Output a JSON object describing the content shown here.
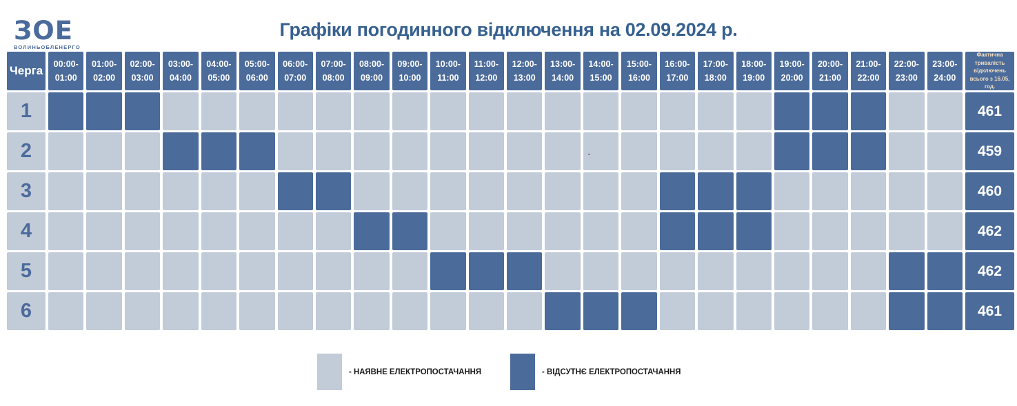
{
  "logo": {
    "text": "ЗОЕ",
    "subtext": "ВОЛИНЬОБЛЕНЕРГО"
  },
  "title": "Графіки погодинного відключення на 02.09.2024 р.",
  "chart_data": {
    "type": "heatmap",
    "title": "Графіки погодинного відключення на 02.09.2024 р.",
    "row_header": "Черга",
    "total_header": "Фактична тривалість відключень всього з 16.05, год.",
    "time_slots": [
      [
        "00:00-",
        "01:00"
      ],
      [
        "01:00-",
        "02:00"
      ],
      [
        "02:00-",
        "03:00"
      ],
      [
        "03:00-",
        "04:00"
      ],
      [
        "04:00-",
        "05:00"
      ],
      [
        "05:00-",
        "06:00"
      ],
      [
        "06:00-",
        "07:00"
      ],
      [
        "07:00-",
        "08:00"
      ],
      [
        "08:00-",
        "09:00"
      ],
      [
        "09:00-",
        "10:00"
      ],
      [
        "10:00-",
        "11:00"
      ],
      [
        "11:00-",
        "12:00"
      ],
      [
        "12:00-",
        "13:00"
      ],
      [
        "13:00-",
        "14:00"
      ],
      [
        "14:00-",
        "15:00"
      ],
      [
        "15:00-",
        "16:00"
      ],
      [
        "16:00-",
        "17:00"
      ],
      [
        "17:00-",
        "18:00"
      ],
      [
        "18:00-",
        "19:00"
      ],
      [
        "19:00-",
        "20:00"
      ],
      [
        "20:00-",
        "21:00"
      ],
      [
        "21:00-",
        "22:00"
      ],
      [
        "22:00-",
        "23:00"
      ],
      [
        "23:00-",
        "24:00"
      ]
    ],
    "queues": [
      {
        "label": "1",
        "off_hours": [
          0,
          1,
          2,
          19,
          20,
          21
        ],
        "total": "461"
      },
      {
        "label": "2",
        "off_hours": [
          3,
          4,
          5,
          19,
          20,
          21
        ],
        "total": "459"
      },
      {
        "label": "3",
        "off_hours": [
          6,
          7,
          16,
          17,
          18
        ],
        "total": "460"
      },
      {
        "label": "4",
        "off_hours": [
          8,
          9,
          16,
          17,
          18
        ],
        "total": "462"
      },
      {
        "label": "5",
        "off_hours": [
          10,
          11,
          12,
          22,
          23
        ],
        "total": "462"
      },
      {
        "label": "6",
        "off_hours": [
          13,
          14,
          15,
          22,
          23
        ],
        "total": "461"
      }
    ],
    "cell_states": {
      "on": "наявне електропостачання",
      "off": "відсутнє електропостачання"
    }
  },
  "legend": {
    "on_label": "- НАЯВНЕ ЕЛЕКТРОПОСТАЧАННЯ",
    "off_label": "- ВІДСУТНЄ ЕЛЕКТРОПОСТАЧАННЯ"
  },
  "colors": {
    "power_on": "#c2cbd8",
    "power_off": "#4b6b9b",
    "title": "#36608f",
    "note_text": "#f2debc",
    "legend_text": "#1a1a1a"
  },
  "stray_mark": "`"
}
